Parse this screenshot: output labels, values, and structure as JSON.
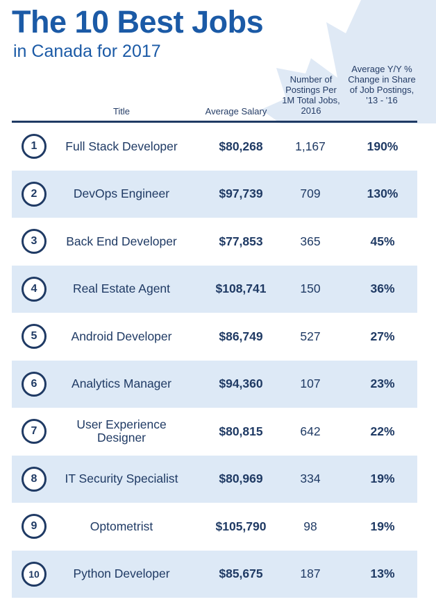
{
  "header": {
    "title": "The 10 Best Jobs",
    "subtitle": "in Canada for 2017"
  },
  "columns": {
    "title": "Title",
    "salary": "Average Salary",
    "postings": "Number of Postings Per 1M Total Jobs, 2016",
    "change": "Average Y/Y % Change in Share of Job Postings, '13 - '16"
  },
  "colors": {
    "title_blue": "#1b5aa6",
    "navy": "#1f3a64",
    "row_shade": "#dde9f6",
    "leaf": "#dfe9f5"
  },
  "chart_data": {
    "type": "table",
    "headers": [
      "Title",
      "Average Salary",
      "Number of Postings Per 1M Total Jobs, 2016",
      "Average Y/Y % Change in Share of Job Postings, '13 - '16"
    ],
    "rows": [
      {
        "rank": "1",
        "title": "Full Stack Developer",
        "salary": "$80,268",
        "postings": "1,167",
        "change": "190%"
      },
      {
        "rank": "2",
        "title": "DevOps Engineer",
        "salary": "$97,739",
        "postings": "709",
        "change": "130%"
      },
      {
        "rank": "3",
        "title": "Back End Developer",
        "salary": "$77,853",
        "postings": "365",
        "change": "45%"
      },
      {
        "rank": "4",
        "title": "Real Estate Agent",
        "salary": "$108,741",
        "postings": "150",
        "change": "36%"
      },
      {
        "rank": "5",
        "title": "Android Developer",
        "salary": "$86,749",
        "postings": "527",
        "change": "27%"
      },
      {
        "rank": "6",
        "title": "Analytics Manager",
        "salary": "$94,360",
        "postings": "107",
        "change": "23%"
      },
      {
        "rank": "7",
        "title": "User Experience Designer",
        "salary": "$80,815",
        "postings": "642",
        "change": "22%"
      },
      {
        "rank": "8",
        "title": "IT Security Specialist",
        "salary": "$80,969",
        "postings": "334",
        "change": "19%"
      },
      {
        "rank": "9",
        "title": "Optometrist",
        "salary": "$105,790",
        "postings": "98",
        "change": "19%"
      },
      {
        "rank": "10",
        "title": "Python Developer",
        "salary": "$85,675",
        "postings": "187",
        "change": "13%"
      }
    ]
  }
}
